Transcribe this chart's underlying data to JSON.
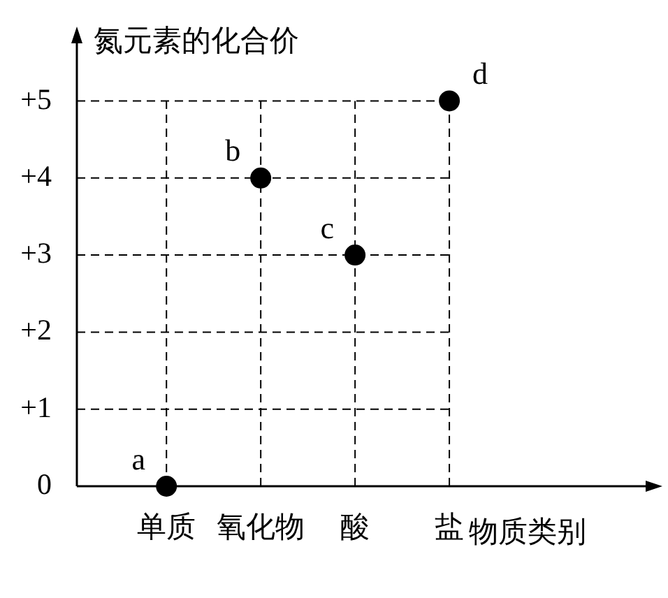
{
  "chart_data": {
    "type": "scatter",
    "ylabel": "氮元素的化合价",
    "xlabel": "物质类别",
    "categories": [
      "单质",
      "氧化物",
      "酸",
      "盐"
    ],
    "values": [
      0,
      4,
      3,
      5
    ],
    "color": "#000000",
    "marker": "circle",
    "grid": true,
    "legend": false,
    "ylim": [
      0,
      5.9
    ],
    "yticks": [
      0,
      {
        "value": 1,
        "label": "+1"
      },
      {
        "value": 2,
        "label": "+2"
      },
      {
        "value": 3,
        "label": "+3"
      },
      {
        "value": 4,
        "label": "+4"
      },
      {
        "value": 5,
        "label": "+5"
      }
    ],
    "annotations": [
      {
        "text": "a",
        "x": "单质",
        "y": 0
      },
      {
        "text": "b",
        "x": "氧化物",
        "y": 4
      },
      {
        "text": "c",
        "x": "酸",
        "y": 3
      },
      {
        "text": "d",
        "x": "盐",
        "y": 5
      }
    ]
  }
}
